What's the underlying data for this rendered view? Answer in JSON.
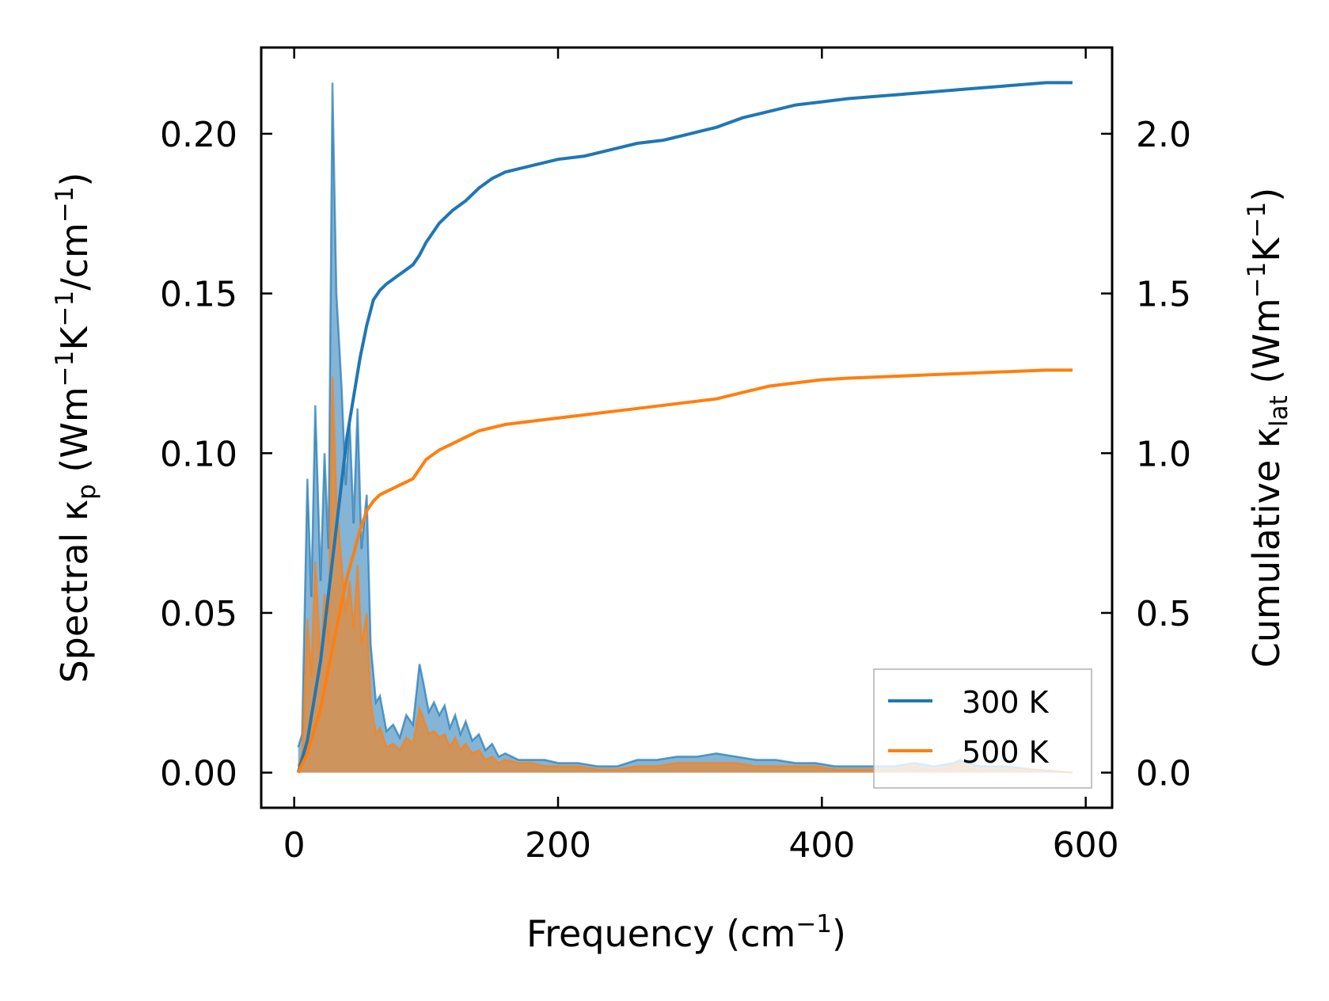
{
  "chart_data": {
    "type": "line",
    "title": "",
    "xlabel": "Frequency (cm",
    "xlabel_sup": "−1",
    "xlabel_tail": ")",
    "ylabel_left": {
      "pre": "Spectral κ",
      "sub": "p",
      "mid1": " (Wm",
      "sup1": "−1",
      "mid2": "K",
      "sup2": "−1",
      "mid3": "/cm",
      "sup3": "−1",
      "post": ")"
    },
    "ylabel_right": {
      "pre": "Cumulative κ",
      "sub": "lat",
      "mid1": " (Wm",
      "sup1": "−1",
      "mid2": "K",
      "sup2": "−1",
      "post": ")"
    },
    "xlim": [
      -25,
      620
    ],
    "ylim_left": [
      -0.011,
      0.227
    ],
    "ylim_right": [
      -0.11,
      2.27
    ],
    "x_ticks": [
      0,
      200,
      400,
      600
    ],
    "x_tick_labels": [
      "0",
      "200",
      "400",
      "600"
    ],
    "y_left_ticks": [
      0.0,
      0.05,
      0.1,
      0.15,
      0.2
    ],
    "y_left_tick_labels": [
      "0.00",
      "0.05",
      "0.10",
      "0.15",
      "0.20"
    ],
    "y_right_ticks": [
      0.0,
      0.5,
      1.0,
      1.5,
      2.0
    ],
    "y_right_tick_labels": [
      "0.0",
      "0.5",
      "1.0",
      "1.5",
      "2.0"
    ],
    "legend_position": "lower-right",
    "series": [
      {
        "name": "300 K",
        "color": "#1f77b4",
        "spectral": {
          "x": [
            3,
            6,
            10,
            13,
            16,
            20,
            23,
            26,
            29,
            32,
            36,
            39,
            42,
            45,
            48,
            51,
            55,
            58,
            62,
            65,
            70,
            75,
            80,
            85,
            90,
            95,
            98,
            102,
            106,
            110,
            114,
            118,
            122,
            126,
            130,
            135,
            140,
            145,
            150,
            155,
            160,
            170,
            180,
            190,
            200,
            215,
            230,
            245,
            260,
            275,
            290,
            305,
            320,
            335,
            350,
            365,
            380,
            395,
            410,
            425,
            440,
            455,
            470,
            485,
            500,
            505,
            510,
            520,
            540,
            560,
            590
          ],
          "y": [
            0.008,
            0.012,
            0.092,
            0.055,
            0.115,
            0.06,
            0.1,
            0.07,
            0.216,
            0.15,
            0.12,
            0.09,
            0.11,
            0.078,
            0.114,
            0.07,
            0.087,
            0.04,
            0.022,
            0.024,
            0.013,
            0.015,
            0.011,
            0.018,
            0.015,
            0.034,
            0.028,
            0.019,
            0.022,
            0.018,
            0.021,
            0.014,
            0.018,
            0.012,
            0.016,
            0.01,
            0.012,
            0.007,
            0.009,
            0.005,
            0.006,
            0.004,
            0.004,
            0.004,
            0.003,
            0.003,
            0.002,
            0.002,
            0.004,
            0.004,
            0.005,
            0.005,
            0.006,
            0.005,
            0.004,
            0.004,
            0.003,
            0.003,
            0.002,
            0.002,
            0.002,
            0.002,
            0.003,
            0.002,
            0.003,
            0.004,
            0.003,
            0.002,
            0.002,
            0.001,
            0.0
          ]
        },
        "cumulative": {
          "x": [
            3,
            10,
            20,
            30,
            40,
            50,
            55,
            60,
            65,
            70,
            80,
            90,
            95,
            100,
            110,
            120,
            130,
            140,
            150,
            160,
            180,
            200,
            220,
            240,
            260,
            280,
            300,
            320,
            340,
            360,
            380,
            400,
            420,
            450,
            480,
            510,
            540,
            570,
            590
          ],
          "y": [
            0.0,
            0.1,
            0.35,
            0.7,
            1.05,
            1.3,
            1.4,
            1.48,
            1.51,
            1.53,
            1.56,
            1.59,
            1.62,
            1.66,
            1.72,
            1.76,
            1.79,
            1.83,
            1.86,
            1.88,
            1.9,
            1.92,
            1.93,
            1.95,
            1.97,
            1.98,
            2.0,
            2.02,
            2.05,
            2.07,
            2.09,
            2.1,
            2.11,
            2.12,
            2.13,
            2.14,
            2.15,
            2.16,
            2.16
          ]
        }
      },
      {
        "name": "500 K",
        "color": "#ff7f0e",
        "spectral": {
          "x": [
            3,
            6,
            10,
            13,
            16,
            20,
            23,
            26,
            29,
            32,
            36,
            39,
            42,
            45,
            48,
            51,
            55,
            58,
            62,
            65,
            70,
            75,
            80,
            85,
            90,
            95,
            98,
            102,
            106,
            110,
            114,
            118,
            122,
            126,
            130,
            135,
            140,
            145,
            150,
            155,
            160,
            170,
            180,
            190,
            200,
            215,
            230,
            245,
            260,
            275,
            290,
            305,
            320,
            335,
            350,
            365,
            380,
            395,
            410,
            425,
            440,
            455,
            470,
            485,
            500,
            505,
            510,
            520,
            540,
            560,
            590
          ],
          "y": [
            0.002,
            0.006,
            0.048,
            0.03,
            0.066,
            0.035,
            0.056,
            0.04,
            0.124,
            0.085,
            0.065,
            0.05,
            0.06,
            0.045,
            0.065,
            0.04,
            0.05,
            0.022,
            0.012,
            0.014,
            0.008,
            0.009,
            0.007,
            0.011,
            0.009,
            0.02,
            0.017,
            0.012,
            0.013,
            0.011,
            0.012,
            0.008,
            0.011,
            0.007,
            0.009,
            0.006,
            0.007,
            0.004,
            0.005,
            0.003,
            0.004,
            0.003,
            0.003,
            0.002,
            0.002,
            0.002,
            0.001,
            0.001,
            0.002,
            0.002,
            0.003,
            0.003,
            0.003,
            0.003,
            0.002,
            0.002,
            0.002,
            0.002,
            0.001,
            0.001,
            0.001,
            0.001,
            0.002,
            0.001,
            0.002,
            0.003,
            0.002,
            0.001,
            0.001,
            0.001,
            0.0
          ]
        },
        "cumulative": {
          "x": [
            3,
            10,
            20,
            30,
            40,
            50,
            55,
            60,
            65,
            70,
            80,
            90,
            95,
            100,
            110,
            120,
            130,
            140,
            150,
            160,
            180,
            200,
            220,
            240,
            260,
            280,
            300,
            320,
            340,
            360,
            380,
            400,
            420,
            450,
            480,
            510,
            540,
            570,
            590
          ],
          "y": [
            0.0,
            0.06,
            0.2,
            0.41,
            0.61,
            0.76,
            0.82,
            0.85,
            0.87,
            0.88,
            0.9,
            0.92,
            0.95,
            0.98,
            1.01,
            1.03,
            1.05,
            1.07,
            1.08,
            1.09,
            1.1,
            1.11,
            1.12,
            1.13,
            1.14,
            1.15,
            1.16,
            1.17,
            1.19,
            1.21,
            1.22,
            1.23,
            1.235,
            1.24,
            1.245,
            1.25,
            1.255,
            1.26,
            1.26
          ]
        }
      }
    ]
  }
}
